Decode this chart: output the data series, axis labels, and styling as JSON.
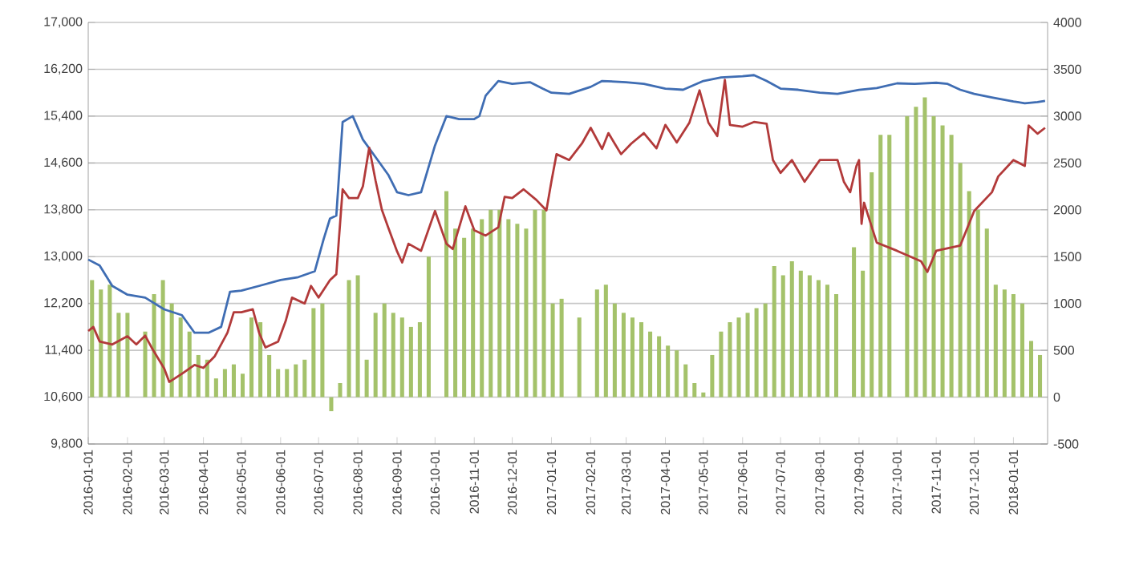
{
  "chart_data": {
    "type": "line",
    "xlim": [
      "2016-01-01",
      "2018-01-28"
    ],
    "xticks": [
      "2016-01-01",
      "2016-02-01",
      "2016-03-01",
      "2016-04-01",
      "2016-05-01",
      "2016-06-01",
      "2016-07-01",
      "2016-08-01",
      "2016-09-01",
      "2016-10-01",
      "2016-11-01",
      "2016-12-01",
      "2017-01-01",
      "2017-02-01",
      "2017-03-01",
      "2017-04-01",
      "2017-05-01",
      "2017-06-01",
      "2017-07-01",
      "2017-08-01",
      "2017-09-01",
      "2017-10-01",
      "2017-11-01",
      "2017-12-01",
      "2018-01-01"
    ],
    "ylim": [
      9800,
      17000
    ],
    "yticks": [
      {
        "value": 9800,
        "label": "9,800"
      },
      {
        "value": 10600,
        "label": "10,600"
      },
      {
        "value": 11400,
        "label": "11,400"
      },
      {
        "value": 12200,
        "label": "12,200"
      },
      {
        "value": 13000,
        "label": "13,000"
      },
      {
        "value": 13800,
        "label": "13,800"
      },
      {
        "value": 14600,
        "label": "14,600"
      },
      {
        "value": 15400,
        "label": "15,400"
      },
      {
        "value": 16200,
        "label": "16,200"
      },
      {
        "value": 17000,
        "label": "17,000"
      }
    ],
    "y2lim": [
      -500,
      4000
    ],
    "y2ticks": [
      -500,
      0,
      500,
      1000,
      1500,
      2000,
      2500,
      3000,
      3500,
      4000
    ],
    "grid": "y",
    "series": [
      {
        "type": "bar",
        "axis": "y2",
        "color": "#a4c26a",
        "x": [
          "2016-01-04",
          "2016-01-11",
          "2016-01-18",
          "2016-01-25",
          "2016-02-01",
          "2016-02-08",
          "2016-02-15",
          "2016-02-22",
          "2016-02-29",
          "2016-03-07",
          "2016-03-14",
          "2016-03-21",
          "2016-03-28",
          "2016-04-04",
          "2016-04-11",
          "2016-04-18",
          "2016-04-25",
          "2016-05-02",
          "2016-05-09",
          "2016-05-16",
          "2016-05-23",
          "2016-05-30",
          "2016-06-06",
          "2016-06-13",
          "2016-06-20",
          "2016-06-27",
          "2016-07-04",
          "2016-07-11",
          "2016-07-18",
          "2016-07-25",
          "2016-08-01",
          "2016-08-08",
          "2016-08-15",
          "2016-08-22",
          "2016-08-29",
          "2016-09-05",
          "2016-09-12",
          "2016-09-19",
          "2016-09-26",
          "2016-10-03",
          "2016-10-10",
          "2016-10-17",
          "2016-10-24",
          "2016-10-31",
          "2016-11-07",
          "2016-11-14",
          "2016-11-21",
          "2016-11-28",
          "2016-12-05",
          "2016-12-12",
          "2016-12-19",
          "2016-12-26",
          "2017-01-02",
          "2017-01-09",
          "2017-01-16",
          "2017-01-23",
          "2017-01-30",
          "2017-02-06",
          "2017-02-13",
          "2017-02-20",
          "2017-02-27",
          "2017-03-06",
          "2017-03-13",
          "2017-03-20",
          "2017-03-27",
          "2017-04-03",
          "2017-04-10",
          "2017-04-17",
          "2017-04-24",
          "2017-05-01",
          "2017-05-08",
          "2017-05-15",
          "2017-05-22",
          "2017-05-29",
          "2017-06-05",
          "2017-06-12",
          "2017-06-19",
          "2017-06-26",
          "2017-07-03",
          "2017-07-10",
          "2017-07-17",
          "2017-07-24",
          "2017-07-31",
          "2017-08-07",
          "2017-08-14",
          "2017-08-21",
          "2017-08-28",
          "2017-09-04",
          "2017-09-11",
          "2017-09-18",
          "2017-09-25",
          "2017-10-02",
          "2017-10-09",
          "2017-10-16",
          "2017-10-23",
          "2017-10-30",
          "2017-11-06",
          "2017-11-13",
          "2017-11-20",
          "2017-11-27",
          "2017-12-04",
          "2017-12-11",
          "2017-12-18",
          "2017-12-25",
          "2018-01-01",
          "2018-01-08",
          "2018-01-15",
          "2018-01-22"
        ],
        "values": [
          1250,
          1150,
          1200,
          900,
          900,
          null,
          700,
          1100,
          1250,
          1000,
          850,
          700,
          450,
          400,
          200,
          300,
          350,
          250,
          850,
          800,
          450,
          300,
          300,
          350,
          400,
          950,
          1000,
          -150,
          150,
          1250,
          1300,
          400,
          900,
          1000,
          900,
          850,
          750,
          800,
          1500,
          null,
          2200,
          1800,
          1700,
          1800,
          1900,
          2000,
          2000,
          1900,
          1850,
          1800,
          2000,
          2000,
          1000,
          1050,
          null,
          850,
          null,
          1150,
          1200,
          1000,
          900,
          850,
          800,
          700,
          650,
          550,
          500,
          350,
          150,
          50,
          450,
          700,
          800,
          850,
          900,
          950,
          1000,
          1400,
          1300,
          1450,
          1350,
          1300,
          1250,
          1200,
          1100,
          null,
          1600,
          1350,
          2400,
          2800,
          2800,
          null,
          3000,
          3100,
          3200,
          3000,
          2900,
          2800,
          2500,
          2200,
          2000,
          1800,
          1200,
          1150,
          1100,
          1000,
          600,
          450
        ]
      },
      {
        "color": "#3f6db3",
        "x": [
          "2016-01-01",
          "2016-01-10",
          "2016-01-20",
          "2016-02-01",
          "2016-02-15",
          "2016-03-01",
          "2016-03-15",
          "2016-03-25",
          "2016-04-05",
          "2016-04-15",
          "2016-04-22",
          "2016-05-01",
          "2016-05-15",
          "2016-06-01",
          "2016-06-15",
          "2016-06-28",
          "2016-07-05",
          "2016-07-10",
          "2016-07-15",
          "2016-07-20",
          "2016-07-28",
          "2016-08-05",
          "2016-08-15",
          "2016-08-25",
          "2016-09-01",
          "2016-09-10",
          "2016-09-20",
          "2016-10-01",
          "2016-10-10",
          "2016-10-20",
          "2016-11-01",
          "2016-11-05",
          "2016-11-10",
          "2016-11-20",
          "2016-12-01",
          "2016-12-15",
          "2016-12-25",
          "2017-01-01",
          "2017-01-15",
          "2017-02-01",
          "2017-02-10",
          "2017-03-01",
          "2017-03-15",
          "2017-04-01",
          "2017-04-15",
          "2017-05-01",
          "2017-05-15",
          "2017-06-01",
          "2017-06-10",
          "2017-06-20",
          "2017-07-01",
          "2017-07-15",
          "2017-08-01",
          "2017-08-15",
          "2017-09-01",
          "2017-09-15",
          "2017-10-01",
          "2017-10-15",
          "2017-11-01",
          "2017-11-10",
          "2017-11-20",
          "2017-12-01",
          "2017-12-15",
          "2018-01-01",
          "2018-01-10",
          "2018-01-20",
          "2018-01-26"
        ],
        "values": [
          12950,
          12850,
          12500,
          12350,
          12300,
          12100,
          12000,
          11700,
          11700,
          11800,
          12400,
          12420,
          12500,
          12600,
          12650,
          12750,
          13300,
          13650,
          13700,
          15300,
          15400,
          15000,
          14700,
          14400,
          14100,
          14050,
          14100,
          14900,
          15400,
          15350,
          15350,
          15400,
          15750,
          16000,
          15950,
          15980,
          15870,
          15800,
          15780,
          15900,
          16000,
          15980,
          15950,
          15870,
          15850,
          16000,
          16060,
          16080,
          16100,
          16000,
          15870,
          15850,
          15800,
          15780,
          15850,
          15880,
          15960,
          15950,
          15970,
          15950,
          15850,
          15780,
          15720,
          15650,
          15620,
          15640,
          15660
        ]
      },
      {
        "color": "#b23a3a",
        "x": [
          "2016-01-01",
          "2016-01-05",
          "2016-01-10",
          "2016-01-20",
          "2016-02-01",
          "2016-02-08",
          "2016-02-15",
          "2016-02-20",
          "2016-03-01",
          "2016-03-05",
          "2016-03-15",
          "2016-03-25",
          "2016-04-01",
          "2016-04-10",
          "2016-04-20",
          "2016-04-25",
          "2016-05-01",
          "2016-05-10",
          "2016-05-15",
          "2016-05-20",
          "2016-05-30",
          "2016-06-05",
          "2016-06-10",
          "2016-06-20",
          "2016-06-25",
          "2016-07-01",
          "2016-07-10",
          "2016-07-15",
          "2016-07-20",
          "2016-07-25",
          "2016-08-01",
          "2016-08-05",
          "2016-08-10",
          "2016-08-15",
          "2016-08-20",
          "2016-08-25",
          "2016-09-01",
          "2016-09-05",
          "2016-09-10",
          "2016-09-20",
          "2016-10-01",
          "2016-10-10",
          "2016-10-15",
          "2016-10-25",
          "2016-11-01",
          "2016-11-10",
          "2016-11-20",
          "2016-11-25",
          "2016-12-01",
          "2016-12-10",
          "2016-12-20",
          "2016-12-28",
          "2017-01-01",
          "2017-01-05",
          "2017-01-15",
          "2017-01-25",
          "2017-02-01",
          "2017-02-10",
          "2017-02-15",
          "2017-02-25",
          "2017-03-05",
          "2017-03-15",
          "2017-03-25",
          "2017-04-01",
          "2017-04-10",
          "2017-04-20",
          "2017-04-28",
          "2017-05-05",
          "2017-05-12",
          "2017-05-18",
          "2017-05-22",
          "2017-06-01",
          "2017-06-10",
          "2017-06-20",
          "2017-06-25",
          "2017-07-01",
          "2017-07-10",
          "2017-07-20",
          "2017-08-01",
          "2017-08-15",
          "2017-08-20",
          "2017-08-25",
          "2017-08-30",
          "2017-09-01",
          "2017-09-03",
          "2017-09-05",
          "2017-09-15",
          "2017-10-01",
          "2017-10-20",
          "2017-10-25",
          "2017-11-01",
          "2017-11-20",
          "2017-12-01",
          "2017-12-15",
          "2017-12-20",
          "2018-01-01",
          "2018-01-10",
          "2018-01-13",
          "2018-01-20",
          "2018-01-26"
        ],
        "values": [
          11730,
          11800,
          11550,
          11500,
          11640,
          11500,
          11650,
          11450,
          11090,
          10860,
          11000,
          11150,
          11100,
          11300,
          11700,
          12050,
          12050,
          12100,
          11700,
          11450,
          11550,
          11900,
          12300,
          12200,
          12500,
          12300,
          12600,
          12700,
          14150,
          14000,
          14000,
          14200,
          14860,
          14300,
          13800,
          13500,
          13090,
          12900,
          13220,
          13100,
          13780,
          13220,
          13130,
          13860,
          13450,
          13360,
          13500,
          14020,
          14000,
          14150,
          13970,
          13790,
          14290,
          14750,
          14650,
          14930,
          15200,
          14840,
          15110,
          14750,
          14930,
          15110,
          14850,
          15250,
          14950,
          15290,
          15840,
          15290,
          15060,
          16020,
          15250,
          15220,
          15300,
          15270,
          14650,
          14430,
          14650,
          14280,
          14650,
          14650,
          14280,
          14100,
          14550,
          14650,
          13560,
          13920,
          13240,
          13100,
          12920,
          12740,
          13100,
          13190,
          13780,
          14100,
          14370,
          14650,
          14550,
          15240,
          15100,
          15200
        ]
      }
    ]
  }
}
